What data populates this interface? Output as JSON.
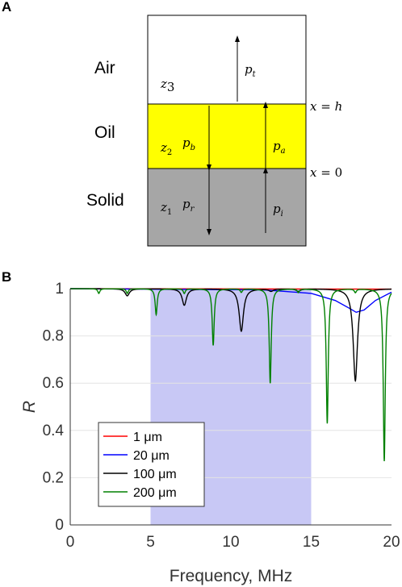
{
  "panel_a": {
    "letter": "A",
    "media": [
      {
        "name": "Air",
        "impedance": "z3",
        "color": "#ffffff"
      },
      {
        "name": "Oil",
        "impedance": "z2",
        "color": "#ffff00"
      },
      {
        "name": "Solid",
        "impedance": "z1",
        "color": "#a6a6a6"
      }
    ],
    "boundaries": {
      "top": "x = h",
      "bottom": "x = 0"
    },
    "waves": {
      "transmitted": "pt",
      "backward": "pb",
      "forward": "pa",
      "reflected": "pr",
      "incident": "pi"
    }
  },
  "panel_b": {
    "letter": "B"
  },
  "chart_data": {
    "type": "line",
    "xlabel": "Frequency, MHz",
    "ylabel": "R",
    "xlim": [
      0,
      20
    ],
    "ylim": [
      0,
      1
    ],
    "xticks": [
      "0",
      "5",
      "10",
      "15",
      "20"
    ],
    "yticks": [
      "0",
      "0.2",
      "0.4",
      "0.6",
      "0.8",
      "1"
    ],
    "grid": "horizontal",
    "shaded_band": {
      "x": [
        5,
        15
      ],
      "color": "#c8c8f5"
    },
    "legend_position": "lower-left",
    "series": [
      {
        "name": "1 μm",
        "color": "#ff0000",
        "points": [
          [
            0,
            1.0
          ],
          [
            20,
            0.998
          ]
        ]
      },
      {
        "name": "20 μm",
        "color": "#0000ff",
        "points": [
          [
            0,
            1.0
          ],
          [
            12,
            0.995
          ],
          [
            15,
            0.98
          ],
          [
            16.5,
            0.95
          ],
          [
            17.3,
            0.92
          ],
          [
            17.8,
            0.9
          ],
          [
            18.3,
            0.91
          ],
          [
            19,
            0.95
          ],
          [
            20,
            0.985
          ]
        ]
      },
      {
        "name": "100 μm",
        "color": "#000000",
        "dips": [
          [
            3.55,
            0.97
          ],
          [
            7.1,
            0.93
          ],
          [
            10.65,
            0.82
          ],
          [
            12.5,
            0.99
          ],
          [
            14.2,
            0.99
          ],
          [
            17.75,
            0.61
          ]
        ]
      },
      {
        "name": "200 μm",
        "color": "#008000",
        "dips": [
          [
            1.78,
            0.98
          ],
          [
            3.55,
            0.98
          ],
          [
            5.35,
            0.89
          ],
          [
            7.1,
            0.98
          ],
          [
            8.9,
            0.76
          ],
          [
            10.65,
            0.985
          ],
          [
            12.45,
            0.6
          ],
          [
            14.2,
            0.985
          ],
          [
            16.0,
            0.43
          ],
          [
            17.75,
            0.985
          ],
          [
            19.55,
            0.27
          ]
        ]
      }
    ]
  }
}
